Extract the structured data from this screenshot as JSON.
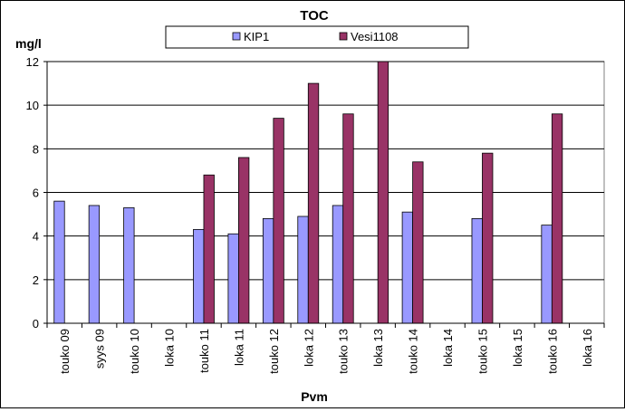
{
  "chart_data": {
    "type": "bar",
    "title": "TOC",
    "xlabel": "Pvm",
    "ylabel": "mg/l",
    "ylim": [
      0,
      12
    ],
    "yticks": [
      0,
      2,
      4,
      6,
      8,
      10,
      12
    ],
    "grid": true,
    "legend_position": "top",
    "categories": [
      "touko 09",
      "syys 09",
      "touko 10",
      "loka 10",
      "touko 11",
      "loka 11",
      "touko 12",
      "loka 12",
      "touko 13",
      "loka 13",
      "touko 14",
      "loka 14",
      "touko 15",
      "loka 15",
      "touko 16",
      "loka 16"
    ],
    "series": [
      {
        "name": "KIP1",
        "color": "#9999ff",
        "values": [
          5.6,
          5.4,
          5.3,
          null,
          4.3,
          4.1,
          4.8,
          4.9,
          5.4,
          null,
          5.1,
          null,
          4.8,
          null,
          4.5,
          null
        ]
      },
      {
        "name": "Vesi1108",
        "color": "#993366",
        "values": [
          null,
          null,
          null,
          null,
          6.8,
          7.6,
          9.4,
          11.0,
          9.6,
          12.0,
          7.4,
          null,
          7.8,
          null,
          9.6,
          null
        ]
      }
    ]
  }
}
